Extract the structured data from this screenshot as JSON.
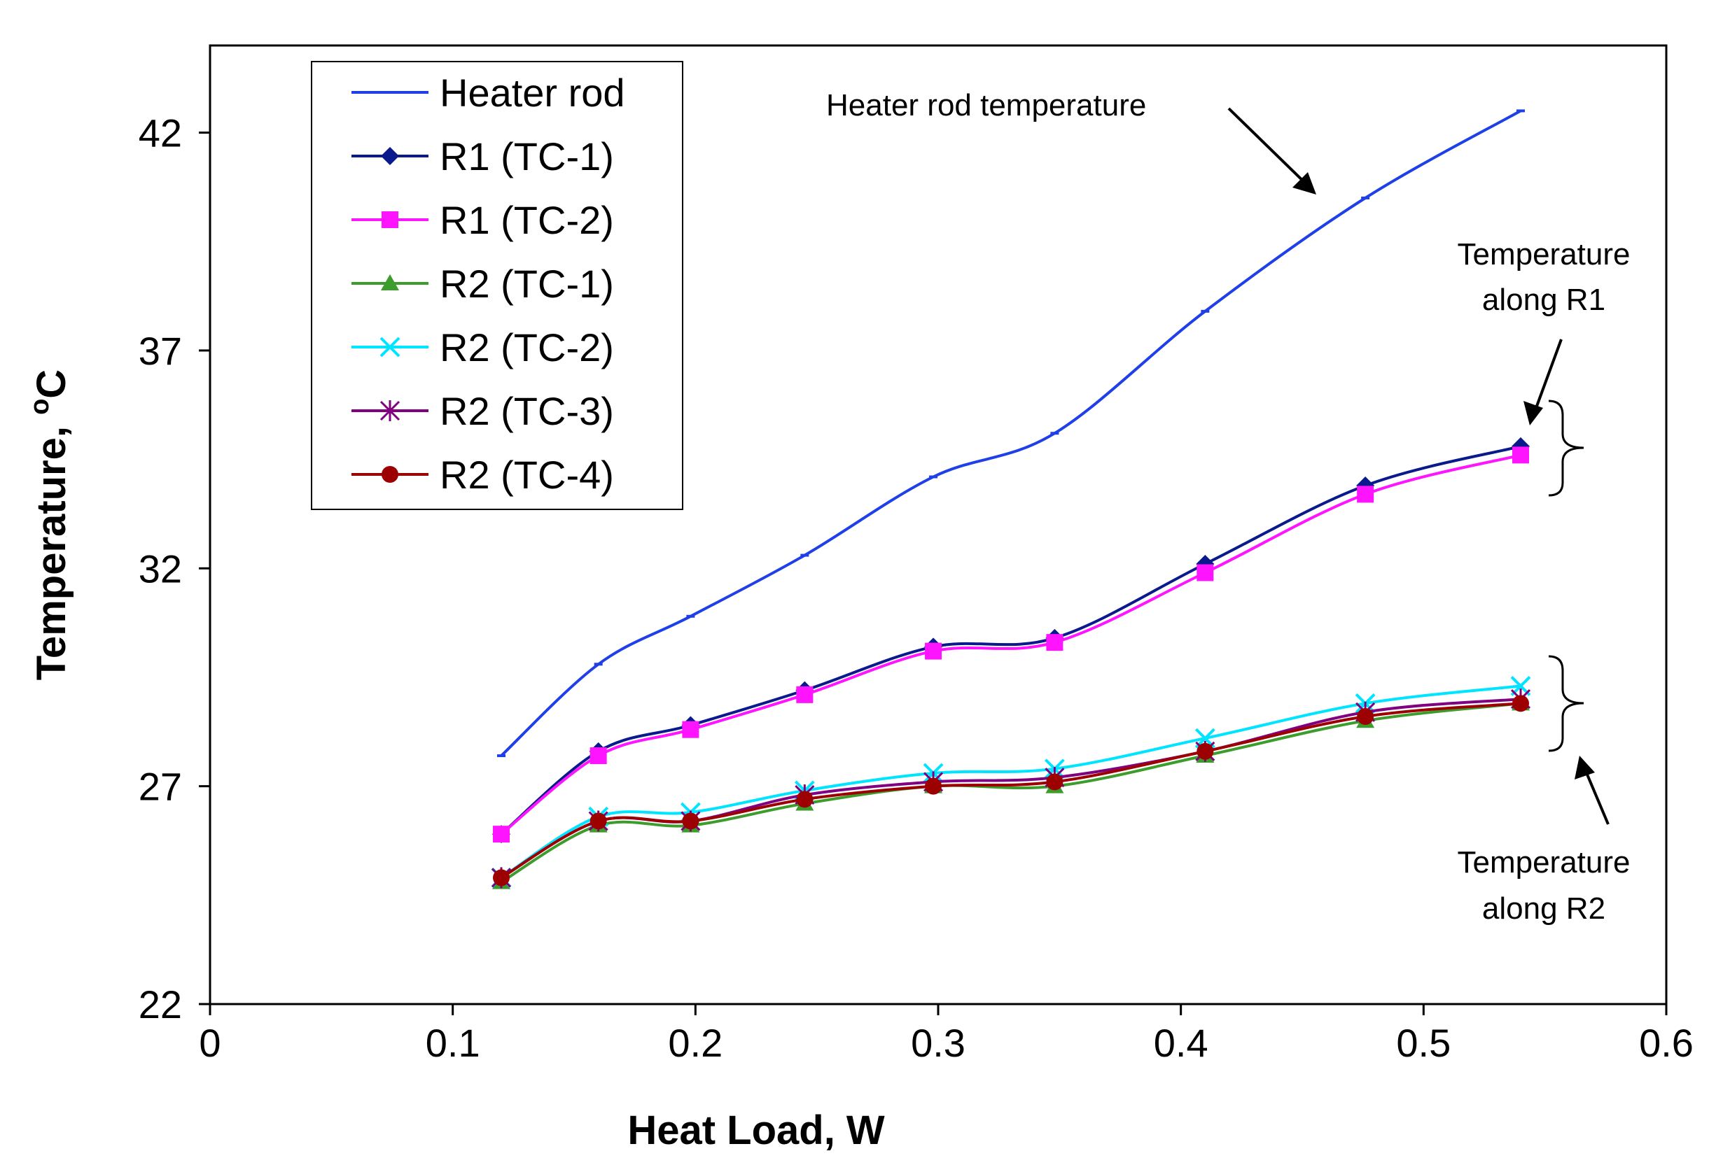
{
  "chart_data": {
    "type": "line",
    "title": "",
    "xlabel": "Heat Load, W",
    "ylabel_main": "Temperature, ",
    "ylabel_sup": "o",
    "ylabel_unit": "C",
    "xlim": [
      0,
      0.6
    ],
    "ylim": [
      22,
      44
    ],
    "xticks": [
      "0",
      "0.1",
      "0.2",
      "0.3",
      "0.4",
      "0.5",
      "0.6"
    ],
    "xtick_values": [
      0,
      0.1,
      0.2,
      0.3,
      0.4,
      0.5,
      0.6
    ],
    "yticks": [
      "22",
      "27",
      "32",
      "37",
      "42"
    ],
    "ytick_values": [
      22,
      27,
      32,
      37,
      42
    ],
    "legend_position": "top-left",
    "x": [
      0.12,
      0.16,
      0.198,
      0.245,
      0.298,
      0.348,
      0.41,
      0.476,
      0.54
    ],
    "series": [
      {
        "name": "Heater rod",
        "color": "#1f3fe8",
        "marker": "dash",
        "values": [
          27.7,
          29.8,
          30.9,
          32.3,
          34.1,
          35.1,
          37.9,
          40.5,
          42.5
        ]
      },
      {
        "name": "R1 (TC-1)",
        "color": "#0a1a8c",
        "marker": "diamond",
        "values": [
          25.9,
          27.8,
          28.4,
          29.2,
          30.2,
          30.4,
          32.1,
          33.9,
          34.8
        ]
      },
      {
        "name": "R1 (TC-2)",
        "color": "#ff14ff",
        "marker": "square",
        "values": [
          25.9,
          27.7,
          28.3,
          29.1,
          30.1,
          30.3,
          31.9,
          33.7,
          34.6
        ]
      },
      {
        "name": "R2 (TC-1)",
        "color": "#3c9c2c",
        "marker": "triangle",
        "values": [
          24.8,
          26.1,
          26.1,
          26.6,
          27.0,
          27.0,
          27.7,
          28.5,
          28.9
        ]
      },
      {
        "name": "R2 (TC-2)",
        "color": "#00e5ff",
        "marker": "x",
        "values": [
          24.9,
          26.3,
          26.4,
          26.9,
          27.3,
          27.4,
          28.1,
          28.9,
          29.3
        ]
      },
      {
        "name": "R2 (TC-3)",
        "color": "#800080",
        "marker": "star",
        "values": [
          24.9,
          26.2,
          26.2,
          26.8,
          27.1,
          27.2,
          27.8,
          28.7,
          29.0
        ]
      },
      {
        "name": "R2 (TC-4)",
        "color": "#9c0000",
        "marker": "circle",
        "values": [
          24.9,
          26.2,
          26.2,
          26.7,
          27.0,
          27.1,
          27.8,
          28.6,
          28.9
        ]
      }
    ],
    "annotations": {
      "heater": "Heater rod temperature",
      "r1_line1": "Temperature",
      "r1_line2": "along R1",
      "r2_line1": "Temperature",
      "r2_line2": "along R2"
    }
  }
}
